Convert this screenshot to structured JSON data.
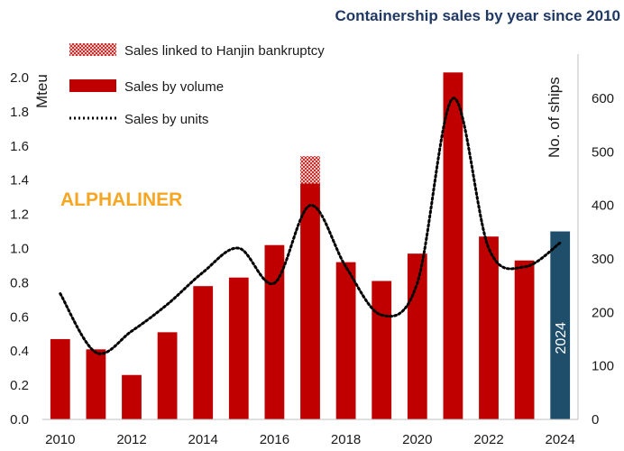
{
  "chart_data": {
    "type": "bar",
    "title": "Containership sales by year since 2010",
    "watermark": "ALPHALINER",
    "ylabel_left": "Mteu",
    "ylabel_right": "No. of ships",
    "y_left_range": [
      0,
      2.0
    ],
    "y_right_range": [
      0,
      600
    ],
    "y_left_ticks": [
      "0.0",
      "0.2",
      "0.4",
      "0.6",
      "0.8",
      "1.0",
      "1.2",
      "1.4",
      "1.6",
      "1.8",
      "2.0"
    ],
    "y_right_ticks": [
      "0",
      "100",
      "200",
      "300",
      "400",
      "500",
      "600"
    ],
    "x_tick_labels": [
      "2010",
      "2012",
      "2014",
      "2016",
      "2018",
      "2020",
      "2022",
      "2024"
    ],
    "categories": [
      "2010",
      "2011",
      "2012",
      "2013",
      "2014",
      "2015",
      "2016",
      "2017",
      "2018",
      "2019",
      "2020",
      "2021",
      "2022",
      "2023",
      "2024"
    ],
    "series": [
      {
        "name": "Sales by volume",
        "kind": "bar",
        "axis": "left",
        "color": "#c00000",
        "values": [
          0.47,
          0.41,
          0.26,
          0.51,
          0.78,
          0.83,
          1.02,
          1.38,
          0.92,
          0.81,
          0.97,
          2.03,
          1.07,
          0.93,
          null
        ]
      },
      {
        "name": "Sales linked to Hanjin bankruptcy",
        "kind": "bar-stacked",
        "axis": "left",
        "color": "#e08080",
        "values": [
          0,
          0,
          0,
          0,
          0,
          0,
          0,
          0.16,
          0,
          0,
          0,
          0,
          0,
          0,
          null
        ]
      },
      {
        "name": "Sales by units",
        "kind": "line",
        "axis": "right",
        "color": "#000000",
        "values": [
          235,
          125,
          165,
          215,
          275,
          320,
          255,
          400,
          285,
          195,
          255,
          600,
          320,
          285,
          330
        ]
      }
    ],
    "highlight_bar": {
      "category": "2024",
      "value": 1.1,
      "label": "2024",
      "color": "#1f4e6b"
    },
    "legend_position": "top-left",
    "grid": false
  }
}
